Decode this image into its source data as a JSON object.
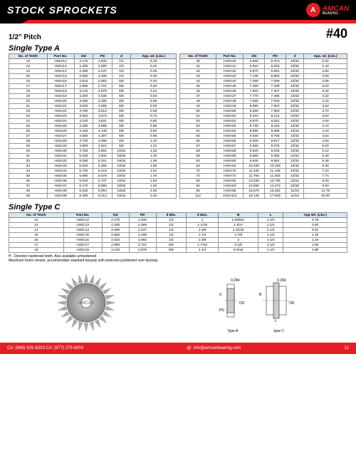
{
  "header": {
    "title": "STOCK SPROCKETS",
    "brand": "AMCAN",
    "brand_sub": "BEARING"
  },
  "pitch": "1/2\" Pitch",
  "code": "#40",
  "sections": {
    "a": "Single Type A",
    "c": "Single Type C"
  },
  "tableA_cols": [
    "No. of Teeth",
    "Part No.",
    "OD",
    "PD",
    "d",
    "App. wt. (Lbs.)"
  ],
  "tableA_left": [
    [
      "12",
      "H40A12",
      "2.170",
      "1.932",
      "1/2",
      "0.18"
    ],
    [
      "13",
      "H40A13",
      "2.330",
      "2.089",
      "1/2",
      "0.22"
    ],
    [
      "14",
      "H40A14",
      "2.490",
      "2.247",
      "1/2",
      "0.26"
    ],
    [
      "15",
      "H40A15",
      "2.650",
      "2.405",
      "1/2",
      "0.30"
    ],
    [
      "16",
      "H40A16",
      "2.810",
      "2.563",
      "5/8",
      "0.34"
    ],
    [
      "17",
      "H40A17",
      "2.980",
      "2.721",
      "5/8",
      "0.40"
    ],
    [
      "18",
      "H40A18",
      "3.140",
      "2.879",
      "5/8",
      "0.44"
    ],
    [
      "19",
      "H40A19",
      "3.300",
      "3.038",
      "5/8",
      "0.50"
    ],
    [
      "20",
      "H40A20",
      "3.460",
      "3.196",
      "5/8",
      "0.56"
    ],
    [
      "21",
      "H40A21",
      "3.620",
      "3.355",
      "5/8",
      "0.58"
    ],
    [
      "22",
      "H40A22",
      "3.780",
      "3.513",
      "5/8",
      "0.66"
    ],
    [
      "23",
      "H40A23",
      "3.940",
      "3.672",
      "5/8",
      "0.72"
    ],
    [
      "24",
      "H40A24",
      "4.100",
      "3.831",
      "5/8",
      "0.80"
    ],
    [
      "25",
      "H40A25",
      "4.260",
      "3.989",
      "5/8",
      "0.88"
    ],
    [
      "26",
      "H40A26",
      "4.420",
      "4.148",
      "5/8",
      "0.94"
    ],
    [
      "27",
      "H40A27",
      "4.580",
      "4.307",
      "5/8",
      "0.96"
    ],
    [
      "28",
      "H40A28",
      "4.740",
      "4.466",
      "5/8",
      "1.10"
    ],
    [
      "29",
      "H40A29",
      "4.900",
      "4.624",
      "5/8",
      "1.22"
    ],
    [
      "30",
      "H40A30",
      "4.783",
      "3.902",
      "19/32",
      "1.26"
    ],
    [
      "31",
      "H40A31",
      "5.220",
      "4.942",
      "19/32",
      "1.40"
    ],
    [
      "32",
      "H40A32",
      "5.380",
      "5.101",
      "19/32",
      "1.48"
    ],
    [
      "33",
      "H40A33",
      "5.540",
      "5.260",
      "19/32",
      "1.56"
    ],
    [
      "34",
      "H40A34",
      "5.700",
      "5.419",
      "19/32",
      "1.64"
    ],
    [
      "35",
      "H40A35",
      "5.860",
      "5.578",
      "19/32",
      "1.70"
    ],
    [
      "36",
      "H40A36",
      "6.020",
      "5.737",
      "19/32",
      "1.84"
    ],
    [
      "37",
      "H40A37",
      "6.170",
      "5.896",
      "19/32",
      "1.92"
    ],
    [
      "38",
      "H40A38",
      "6.330",
      "6.054",
      "19/32",
      "2.00"
    ],
    [
      "39",
      "H40A39",
      "6.490",
      "6.214",
      "19/32",
      "2.02"
    ]
  ],
  "tableA_right": [
    [
      "40",
      "H40A40",
      "6.650",
      "6.373",
      "23/32",
      "2.32"
    ],
    [
      "41",
      "H40A41",
      "6.810",
      "6.532",
      "23/32",
      "2.42"
    ],
    [
      "42",
      "H40A42",
      "6.970",
      "6.691",
      "23/32",
      "2.50"
    ],
    [
      "43",
      "H40A43",
      "7.130",
      "6.850",
      "23/32",
      "2.60"
    ],
    [
      "44",
      "H40A44",
      "7.290",
      "7.009",
      "23/32",
      "2.85"
    ],
    [
      "45",
      "H40A45",
      "7.450",
      "7.168",
      "23/32",
      "3.02"
    ],
    [
      "46",
      "H40A46",
      "7.610",
      "7.327",
      "23/32",
      "3.26"
    ],
    [
      "47",
      "H40A47",
      "7.770",
      "7.486",
      "23/32",
      "3.32"
    ],
    [
      "48",
      "H40A48",
      "7.930",
      "7.645",
      "23/32",
      "3.42"
    ],
    [
      "49",
      "H40A49",
      "8.090",
      "7.804",
      "23/32",
      "3.52"
    ],
    [
      "50",
      "H40A50",
      "8.250",
      "7.963",
      "23/32",
      "3.70"
    ],
    [
      "51",
      "H40A51",
      "8.410",
      "8.122",
      "23/32",
      "3.84"
    ],
    [
      "52",
      "H40A52",
      "8.570",
      "8.281",
      "23/32",
      "4.08"
    ],
    [
      "53",
      "H40A53",
      "8.730",
      "8.440",
      "23/32",
      "4.24"
    ],
    [
      "54",
      "H40A54",
      "8.890",
      "8.599",
      "23/32",
      "4.44"
    ],
    [
      "55",
      "H40A55",
      "9.040",
      "8.758",
      "23/32",
      "4.54"
    ],
    [
      "56",
      "H40A56",
      "9.200",
      "8.917",
      "23/32",
      "4.84"
    ],
    [
      "57",
      "H40A57",
      "9.360",
      "9.076",
      "23/32",
      "5.00"
    ],
    [
      "58",
      "H40A58",
      "9.520",
      "9.236",
      "23/32",
      "5.12"
    ],
    [
      "59",
      "H40A59",
      "9.680",
      "9.395",
      "23/32",
      "5.30"
    ],
    [
      "60",
      "H40A60",
      "9.840",
      "9.554",
      "23/32",
      "5.48"
    ],
    [
      "64",
      "H40A64",
      "10.020",
      "10.349",
      "23/32",
      "6.30"
    ],
    [
      "70",
      "H40A70",
      "11.430",
      "11.146",
      "23/32",
      "7.24"
    ],
    [
      "72",
      "H40A72",
      "11.750",
      "11.463",
      "23/32",
      "7.74"
    ],
    [
      "80",
      "H40A80",
      "13.030",
      "12.736",
      "23/32",
      "9.30"
    ],
    [
      "84",
      "H40A84",
      "13.660",
      "13.372",
      "23/32",
      "9.50"
    ],
    [
      "96",
      "H40A96",
      "15.570",
      "15.281",
      "11/16",
      "12.76"
    ],
    [
      "112",
      "H40A112",
      "18.120",
      "17.628",
      "11/16",
      "20.00"
    ]
  ],
  "tableC_cols": [
    "No. of Teeth",
    "Part No.",
    "OD",
    "PD",
    "d Min.",
    "d Max.",
    "B",
    "L",
    "App Wt. (Lbs.)"
  ],
  "tableC_rows": [
    [
      "12",
      "H40C12",
      "2.170",
      "1.932",
      "1/2",
      "1",
      "1-33/64+",
      "1-1/2",
      "0.75"
    ],
    [
      "13",
      "H40C13",
      "2.330",
      "2.089",
      "1/2",
      "1-1/16",
      "1-3/4+",
      "1-1/2",
      "0.94"
    ],
    [
      "14",
      "H40C14",
      "2.490",
      "2.247",
      "1/2",
      "1-3/8",
      "1-11/32",
      "1-1/2",
      "0.91"
    ],
    [
      "15",
      "H40C15",
      "2.650",
      "2.405",
      "1/2",
      "1-1/4",
      "1-7/8",
      "1-1/2",
      "1.19"
    ],
    [
      "16",
      "H40C16",
      "2.810",
      "2.563",
      "1/2",
      "1-3/8",
      "2",
      "1-1/2",
      "1.34"
    ],
    [
      "17",
      "H40C17",
      "2.980",
      "2.721",
      "5/8",
      "1-7/16",
      "2-1/8",
      "1-1/2",
      "1.50"
    ],
    [
      "18",
      "H40C18",
      "3.140",
      "2.879",
      "5/8",
      "1-1/2",
      "2-5/16",
      "1-1/2",
      "1.80"
    ]
  ],
  "notes": [
    "H - Denotes hardened teeth. Also available unhardened",
    "Maximum bores shown, accommodate standard keyway with setscrew positioned over keyway."
  ],
  "diag_labels": {
    "typeA": "Type A",
    "typeC": "type C"
  },
  "footer": {
    "phone": "CA: (866) 625-8203 CA: (877) 275-6304",
    "email": "info@amcanbearing.com",
    "page": "12"
  },
  "colors": {
    "red": "#e31e24",
    "black": "#000000",
    "th_bg": "#dce6ef"
  }
}
